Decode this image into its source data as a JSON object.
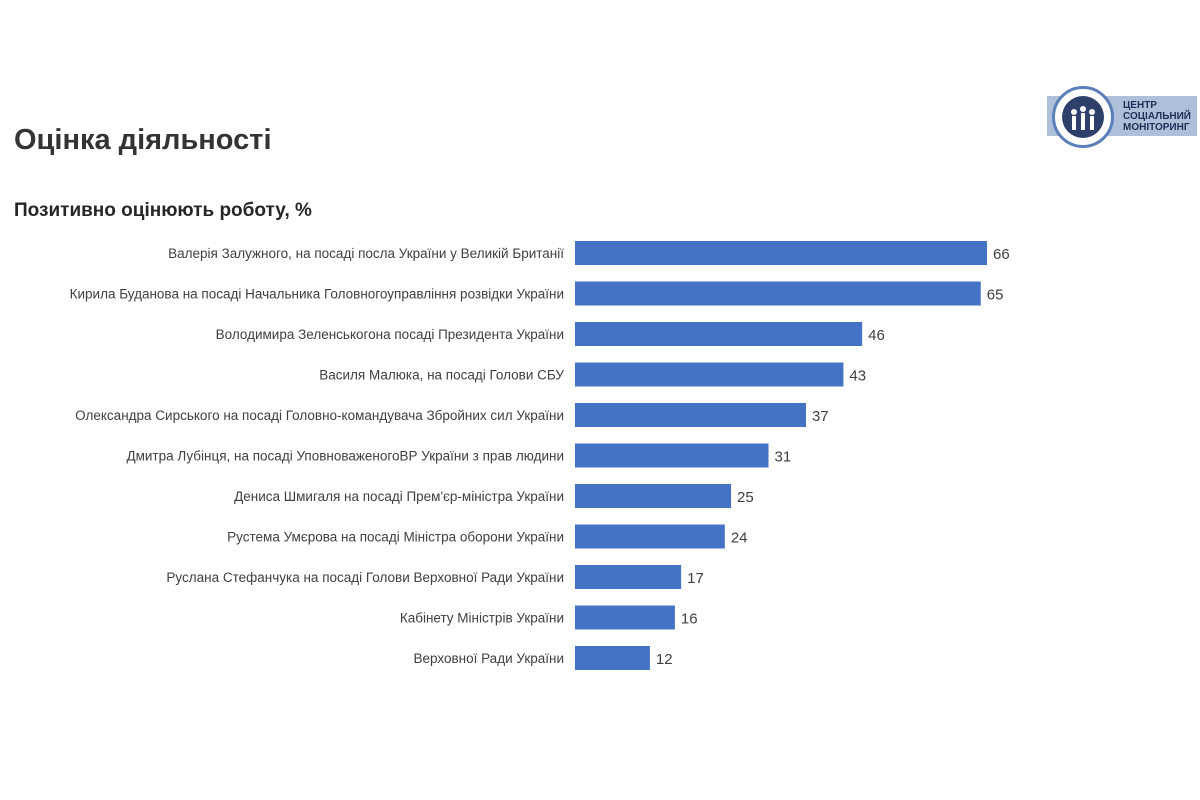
{
  "page": {
    "title": "Оцінка діяльності"
  },
  "logo": {
    "line1": "ЦЕНТР",
    "line2": "СОЦІАЛЬНИЙ",
    "line3": "МОНІТОРИНГ"
  },
  "colors": {
    "bar": "#4472c4",
    "text": "#404040"
  },
  "chart_data": {
    "type": "bar",
    "orientation": "horizontal",
    "title": "Позитивно оцінюють роботу, %",
    "xlabel": "",
    "ylabel": "",
    "xlim": [
      0,
      66
    ],
    "grid": false,
    "legend": "none",
    "categories": [
      "Валерія Залужного, на посаді посла України у Великій Британії",
      "Кирила Буданова на посаді Начальника Головногоуправління розвідки України",
      "Володимира Зеленськогона посаді Президента України",
      "Василя Малюка, на посаді Голови СБУ",
      "Олександра Сирського на посаді Головно-командувача Збройних сил України ",
      "Дмитра Лубінця, на посаді УповноваженогоВР України з прав людини",
      "Дениса Шмигаля на посаді Прем'єр-міністра України",
      "Рустема Умєрова на посаді Міністра оборони України",
      "Руслана Стефанчука на посаді Голови Верховної Ради України",
      "Кабінету Міністрів України",
      "Верховної Ради України"
    ],
    "values": [
      66,
      65,
      46,
      43,
      37,
      31,
      25,
      24,
      17,
      16,
      12
    ]
  }
}
